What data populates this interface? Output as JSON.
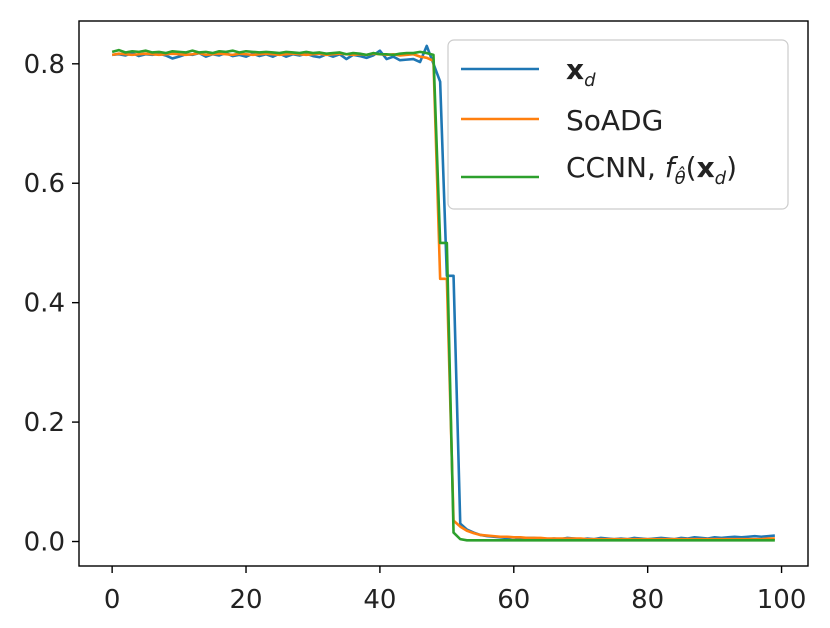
{
  "chart_data": {
    "type": "line",
    "title": "",
    "xlabel": "",
    "ylabel": "",
    "xlim": [
      -4.95,
      103.95
    ],
    "ylim": [
      -0.041,
      0.8717
    ],
    "xticks": [
      0,
      20,
      40,
      60,
      80,
      100
    ],
    "yticks": [
      0.0,
      0.2,
      0.4,
      0.6,
      0.8
    ],
    "xtick_labels": [
      "0",
      "20",
      "40",
      "60",
      "80",
      "100"
    ],
    "ytick_labels": [
      "0.0",
      "0.2",
      "0.4",
      "0.6",
      "0.8"
    ],
    "legend_position": "top-right",
    "grid": false,
    "x": [
      0,
      1,
      2,
      3,
      4,
      5,
      6,
      7,
      8,
      9,
      10,
      11,
      12,
      13,
      14,
      15,
      16,
      17,
      18,
      19,
      20,
      21,
      22,
      23,
      24,
      25,
      26,
      27,
      28,
      29,
      30,
      31,
      32,
      33,
      34,
      35,
      36,
      37,
      38,
      39,
      40,
      41,
      42,
      43,
      44,
      45,
      46,
      47,
      48,
      49,
      50,
      51,
      52,
      53,
      54,
      55,
      56,
      57,
      58,
      59,
      60,
      61,
      62,
      63,
      64,
      65,
      66,
      67,
      68,
      69,
      70,
      71,
      72,
      73,
      74,
      75,
      76,
      77,
      78,
      79,
      80,
      81,
      82,
      83,
      84,
      85,
      86,
      87,
      88,
      89,
      90,
      91,
      92,
      93,
      94,
      95,
      96,
      97,
      98,
      99
    ],
    "series": [
      {
        "name": "x_d",
        "label_main": "x",
        "label_sub": "d",
        "color": "#1f77b4",
        "values": [
          0.815,
          0.816,
          0.814,
          0.818,
          0.813,
          0.816,
          0.815,
          0.817,
          0.814,
          0.809,
          0.812,
          0.816,
          0.815,
          0.818,
          0.812,
          0.816,
          0.814,
          0.818,
          0.813,
          0.815,
          0.812,
          0.817,
          0.813,
          0.816,
          0.812,
          0.817,
          0.812,
          0.816,
          0.814,
          0.817,
          0.813,
          0.811,
          0.816,
          0.812,
          0.816,
          0.808,
          0.815,
          0.813,
          0.81,
          0.814,
          0.822,
          0.808,
          0.812,
          0.806,
          0.807,
          0.808,
          0.803,
          0.83,
          0.8,
          0.77,
          0.445,
          0.445,
          0.03,
          0.02,
          0.015,
          0.011,
          0.009,
          0.008,
          0.007,
          0.006,
          0.007,
          0.005,
          0.006,
          0.006,
          0.005,
          0.004,
          0.005,
          0.004,
          0.006,
          0.005,
          0.004,
          0.005,
          0.004,
          0.006,
          0.005,
          0.004,
          0.005,
          0.004,
          0.006,
          0.005,
          0.004,
          0.005,
          0.006,
          0.005,
          0.004,
          0.006,
          0.005,
          0.007,
          0.006,
          0.005,
          0.007,
          0.006,
          0.007,
          0.008,
          0.007,
          0.008,
          0.009,
          0.008,
          0.009,
          0.01
        ]
      },
      {
        "name": "SoADG",
        "color": "#ff7f0e",
        "values": [
          0.815,
          0.817,
          0.816,
          0.815,
          0.816,
          0.817,
          0.816,
          0.815,
          0.816,
          0.817,
          0.816,
          0.815,
          0.816,
          0.818,
          0.815,
          0.816,
          0.817,
          0.816,
          0.815,
          0.817,
          0.816,
          0.815,
          0.816,
          0.817,
          0.816,
          0.815,
          0.816,
          0.817,
          0.816,
          0.815,
          0.816,
          0.817,
          0.815,
          0.816,
          0.817,
          0.816,
          0.815,
          0.816,
          0.815,
          0.817,
          0.816,
          0.815,
          0.816,
          0.814,
          0.815,
          0.816,
          0.812,
          0.81,
          0.805,
          0.44,
          0.44,
          0.035,
          0.025,
          0.018,
          0.014,
          0.011,
          0.01,
          0.009,
          0.008,
          0.008,
          0.007,
          0.007,
          0.006,
          0.006,
          0.006,
          0.005,
          0.005,
          0.005,
          0.005,
          0.005,
          0.005,
          0.004,
          0.004,
          0.004,
          0.004,
          0.004,
          0.004,
          0.004,
          0.004,
          0.004,
          0.004,
          0.004,
          0.004,
          0.004,
          0.004,
          0.004,
          0.004,
          0.004,
          0.004,
          0.004,
          0.004,
          0.004,
          0.004,
          0.004,
          0.004,
          0.004,
          0.004,
          0.004,
          0.005,
          0.005
        ]
      },
      {
        "name": "CCNN, f_θ̂(x_d)",
        "label_main": "CCNN, ",
        "color": "#2ca02c",
        "values": [
          0.82,
          0.823,
          0.819,
          0.821,
          0.82,
          0.822,
          0.819,
          0.82,
          0.818,
          0.821,
          0.82,
          0.819,
          0.822,
          0.819,
          0.82,
          0.818,
          0.821,
          0.82,
          0.822,
          0.819,
          0.821,
          0.82,
          0.819,
          0.82,
          0.819,
          0.818,
          0.82,
          0.819,
          0.818,
          0.82,
          0.818,
          0.819,
          0.817,
          0.818,
          0.819,
          0.816,
          0.818,
          0.817,
          0.815,
          0.818,
          0.816,
          0.816,
          0.815,
          0.817,
          0.818,
          0.818,
          0.82,
          0.818,
          0.815,
          0.5,
          0.5,
          0.015,
          0.004,
          0.002,
          0.002,
          0.002,
          0.002,
          0.002,
          0.002,
          0.002,
          0.002,
          0.002,
          0.002,
          0.002,
          0.002,
          0.002,
          0.002,
          0.002,
          0.002,
          0.002,
          0.002,
          0.002,
          0.002,
          0.002,
          0.002,
          0.002,
          0.002,
          0.002,
          0.002,
          0.002,
          0.002,
          0.002,
          0.002,
          0.002,
          0.002,
          0.002,
          0.002,
          0.002,
          0.002,
          0.002,
          0.002,
          0.002,
          0.002,
          0.002,
          0.002,
          0.002,
          0.002,
          0.002,
          0.002,
          0.002
        ]
      }
    ]
  }
}
